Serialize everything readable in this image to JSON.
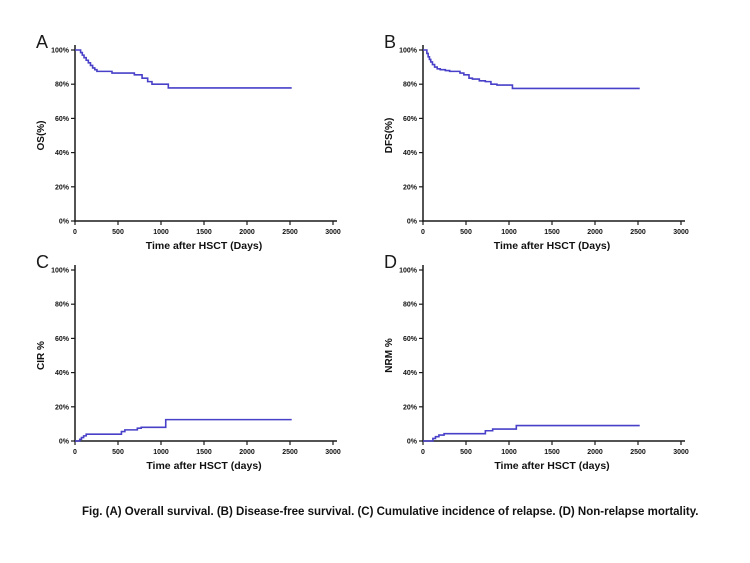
{
  "figure": {
    "caption": "Fig. (A) Overall survival. (B) Disease-free survival. (C) Cumulative incidence of relapse. (D) Non-relapse mortality."
  },
  "colors": {
    "curve": "#4840c8",
    "axis": "#1a1a1a",
    "text": "#111111",
    "background": "#ffffff"
  },
  "chart_data": [
    {
      "type": "line",
      "panel": "A",
      "title": "Overall survival",
      "xlabel": "Time after HSCT (Days)",
      "ylabel": "OS(%)",
      "xlim": [
        0,
        3000
      ],
      "ylim": [
        0,
        100
      ],
      "xticks": [
        0,
        500,
        1000,
        1500,
        2000,
        2500,
        3000
      ],
      "yticks": [
        0,
        20,
        40,
        60,
        80,
        100
      ],
      "ytick_suffix": "%",
      "legend": "none",
      "grid": false,
      "step": true,
      "points": [
        [
          0,
          100
        ],
        [
          45,
          100
        ],
        [
          65,
          98.5
        ],
        [
          85,
          97
        ],
        [
          105,
          95.5
        ],
        [
          130,
          94
        ],
        [
          155,
          92.5
        ],
        [
          180,
          91
        ],
        [
          205,
          89.5
        ],
        [
          230,
          88.5
        ],
        [
          255,
          87.5
        ],
        [
          430,
          86.5
        ],
        [
          690,
          85.5
        ],
        [
          780,
          83.5
        ],
        [
          845,
          81.5
        ],
        [
          895,
          80
        ],
        [
          1085,
          77.8
        ],
        [
          2520,
          77.8
        ]
      ]
    },
    {
      "type": "line",
      "panel": "B",
      "title": "Disease-free survival",
      "xlabel": "Time after HSCT (Days)",
      "ylabel": "DFS(%)",
      "xlim": [
        0,
        3000
      ],
      "ylim": [
        0,
        100
      ],
      "xticks": [
        0,
        500,
        1000,
        1500,
        2000,
        2500,
        3000
      ],
      "yticks": [
        0,
        20,
        40,
        60,
        80,
        100
      ],
      "ytick_suffix": "%",
      "legend": "none",
      "grid": false,
      "step": true,
      "points": [
        [
          0,
          100
        ],
        [
          30,
          100
        ],
        [
          45,
          98
        ],
        [
          60,
          96
        ],
        [
          75,
          94.5
        ],
        [
          90,
          93
        ],
        [
          110,
          91.5
        ],
        [
          135,
          90
        ],
        [
          165,
          89
        ],
        [
          200,
          88.5
        ],
        [
          260,
          88
        ],
        [
          310,
          87.5
        ],
        [
          430,
          86.5
        ],
        [
          475,
          85.5
        ],
        [
          535,
          83.5
        ],
        [
          575,
          83
        ],
        [
          655,
          82
        ],
        [
          725,
          81.5
        ],
        [
          790,
          80
        ],
        [
          860,
          79.5
        ],
        [
          1040,
          77.5
        ],
        [
          2520,
          77.5
        ]
      ]
    },
    {
      "type": "line",
      "panel": "C",
      "title": "Cumulative incidence of relapse",
      "xlabel": "Time after HSCT (days)",
      "ylabel": "CIR %",
      "xlim": [
        0,
        3000
      ],
      "ylim": [
        0,
        100
      ],
      "xticks": [
        0,
        500,
        1000,
        1500,
        2000,
        2500,
        3000
      ],
      "yticks": [
        0,
        20,
        40,
        60,
        80,
        100
      ],
      "ytick_suffix": "%",
      "legend": "none",
      "grid": false,
      "step": true,
      "points": [
        [
          0,
          0
        ],
        [
          35,
          0
        ],
        [
          55,
          1
        ],
        [
          75,
          2
        ],
        [
          100,
          3
        ],
        [
          130,
          4
        ],
        [
          540,
          5.5
        ],
        [
          580,
          6.5
        ],
        [
          725,
          7.5
        ],
        [
          770,
          8
        ],
        [
          1055,
          12.5
        ],
        [
          2520,
          12.5
        ]
      ]
    },
    {
      "type": "line",
      "panel": "D",
      "title": "Non-relapse mortality",
      "xlabel": "Time after HSCT (days)",
      "ylabel": "NRM %",
      "xlim": [
        0,
        3000
      ],
      "ylim": [
        0,
        100
      ],
      "xticks": [
        0,
        500,
        1000,
        1500,
        2000,
        2500,
        3000
      ],
      "yticks": [
        0,
        20,
        40,
        60,
        80,
        100
      ],
      "ytick_suffix": "%",
      "legend": "none",
      "grid": false,
      "step": true,
      "points": [
        [
          0,
          0
        ],
        [
          90,
          0
        ],
        [
          115,
          1.5
        ],
        [
          145,
          2.5
        ],
        [
          185,
          3.5
        ],
        [
          245,
          4.3
        ],
        [
          725,
          6
        ],
        [
          810,
          7
        ],
        [
          1085,
          9
        ],
        [
          2520,
          9
        ]
      ]
    }
  ]
}
